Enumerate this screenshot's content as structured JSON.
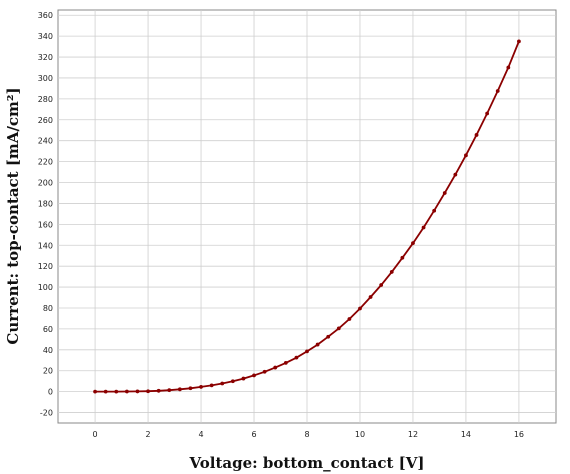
{
  "chart_data": {
    "type": "line",
    "xlabel": "Voltage: bottom_contact [V]",
    "ylabel": "Current: top-contact [mA/cm²]",
    "xlim": [
      -1.4,
      17.4
    ],
    "ylim": [
      -30,
      365
    ],
    "xticks": [
      0,
      2,
      4,
      6,
      8,
      10,
      12,
      14,
      16
    ],
    "yticks": [
      -20,
      0,
      20,
      40,
      60,
      80,
      100,
      120,
      140,
      160,
      180,
      200,
      220,
      240,
      260,
      280,
      300,
      320,
      340,
      360
    ],
    "grid": true,
    "series": [
      {
        "color": "#8b0000",
        "marker": "circle",
        "x": [
          0,
          0.4,
          0.8,
          1.2,
          1.6,
          2.0,
          2.4,
          2.8,
          3.2,
          3.6,
          4.0,
          4.4,
          4.8,
          5.2,
          5.6,
          6.0,
          6.4,
          6.8,
          7.2,
          7.6,
          8.0,
          8.4,
          8.8,
          9.2,
          9.6,
          10.0,
          10.4,
          10.8,
          11.2,
          11.6,
          12.0,
          12.4,
          12.8,
          13.2,
          13.6,
          14.0,
          14.4,
          14.8,
          15.2,
          15.6,
          16.0
        ],
        "y": [
          0,
          0,
          0,
          0.1,
          0.2,
          0.4,
          0.8,
          1.4,
          2.2,
          3.2,
          4.5,
          6,
          7.8,
          9.9,
          12.5,
          15.5,
          19,
          23,
          27.5,
          32.5,
          38.5,
          45,
          52.5,
          60.5,
          69.5,
          79.5,
          90.5,
          102,
          114.5,
          128,
          142,
          157,
          173,
          190,
          207.5,
          226,
          245.5,
          266,
          287.5,
          310,
          335
        ]
      }
    ]
  }
}
